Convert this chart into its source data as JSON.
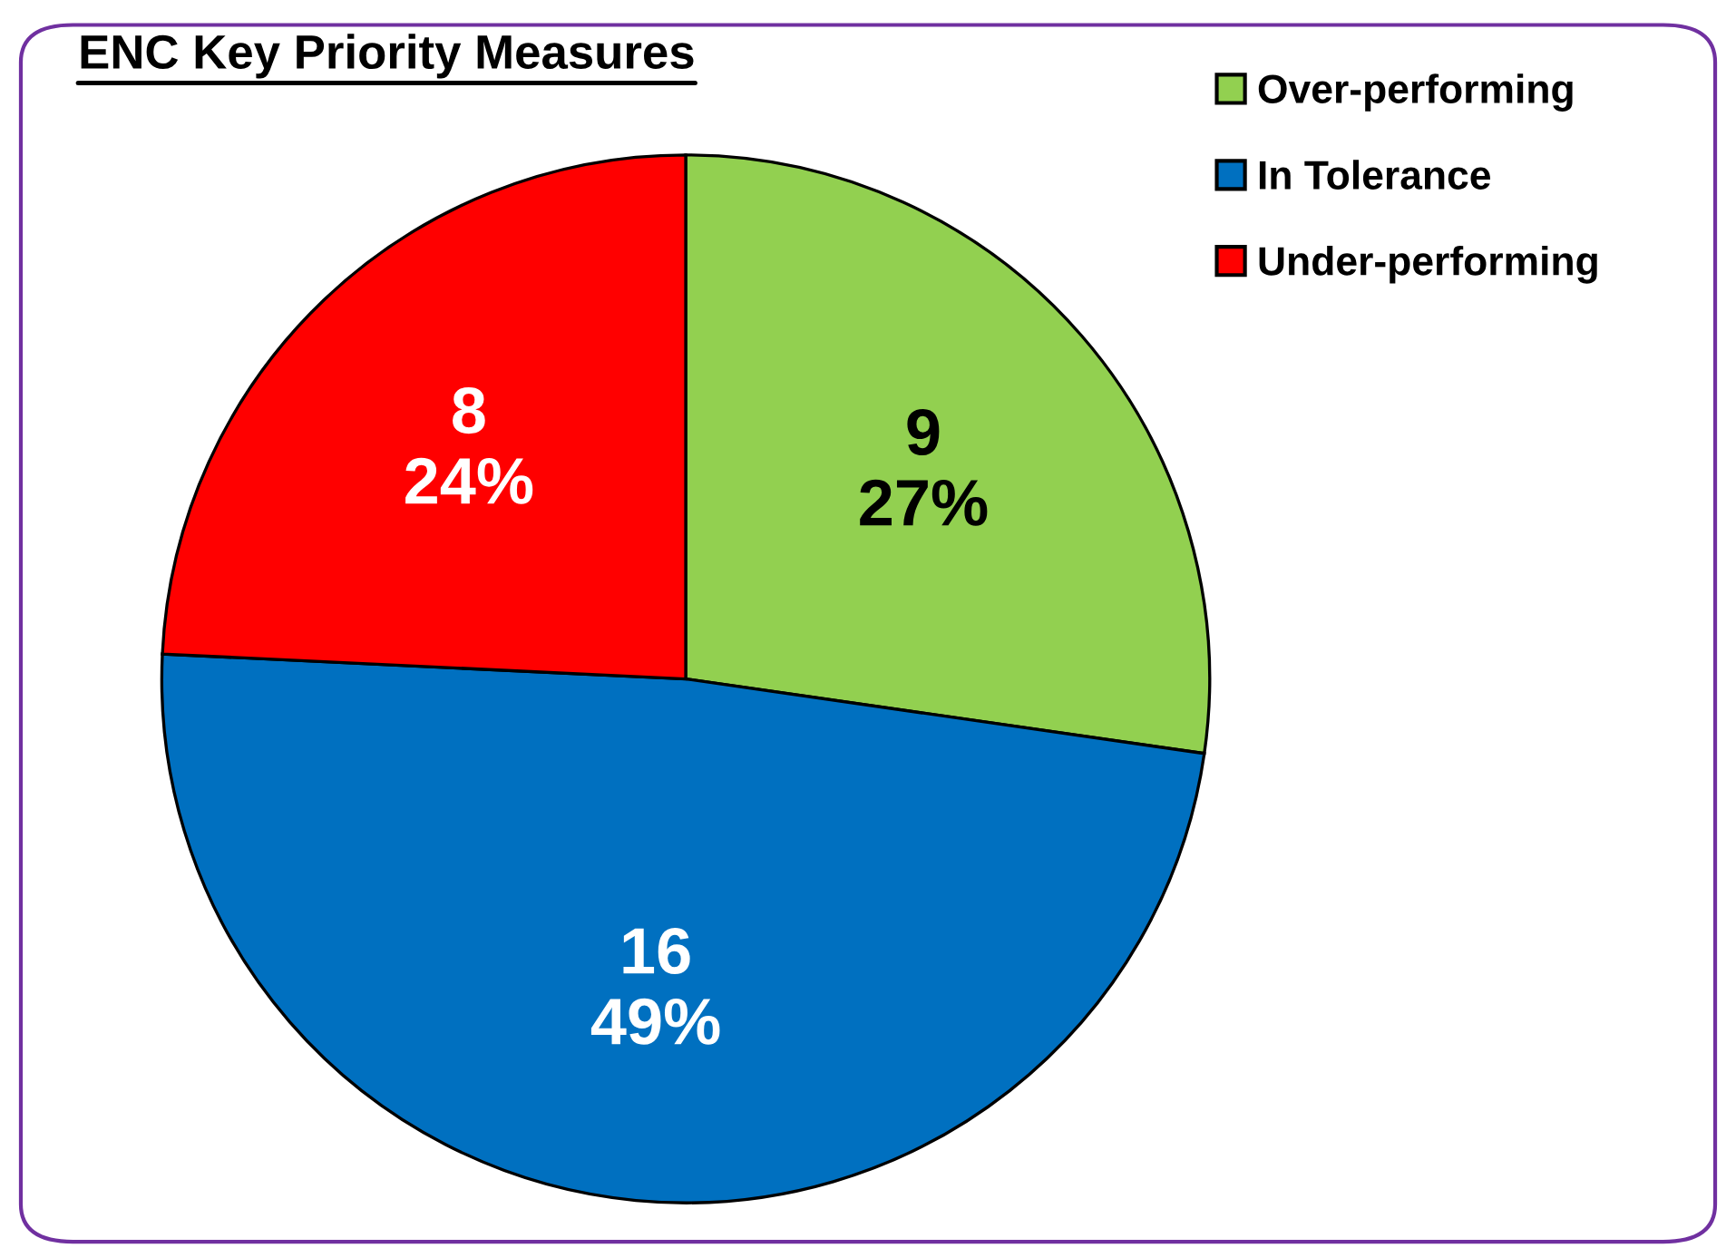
{
  "chart_data": {
    "type": "pie",
    "title": "ENC Key Priority Measures",
    "categories": [
      "Over-performing",
      "In Tolerance",
      "Under-performing"
    ],
    "values": [
      9,
      16,
      8
    ],
    "colors": [
      "#92d050",
      "#0070c0",
      "#ff0000"
    ],
    "value_labels": [
      "9\n27%",
      "16\n49%",
      "8\n24%"
    ],
    "legend": "top right"
  }
}
